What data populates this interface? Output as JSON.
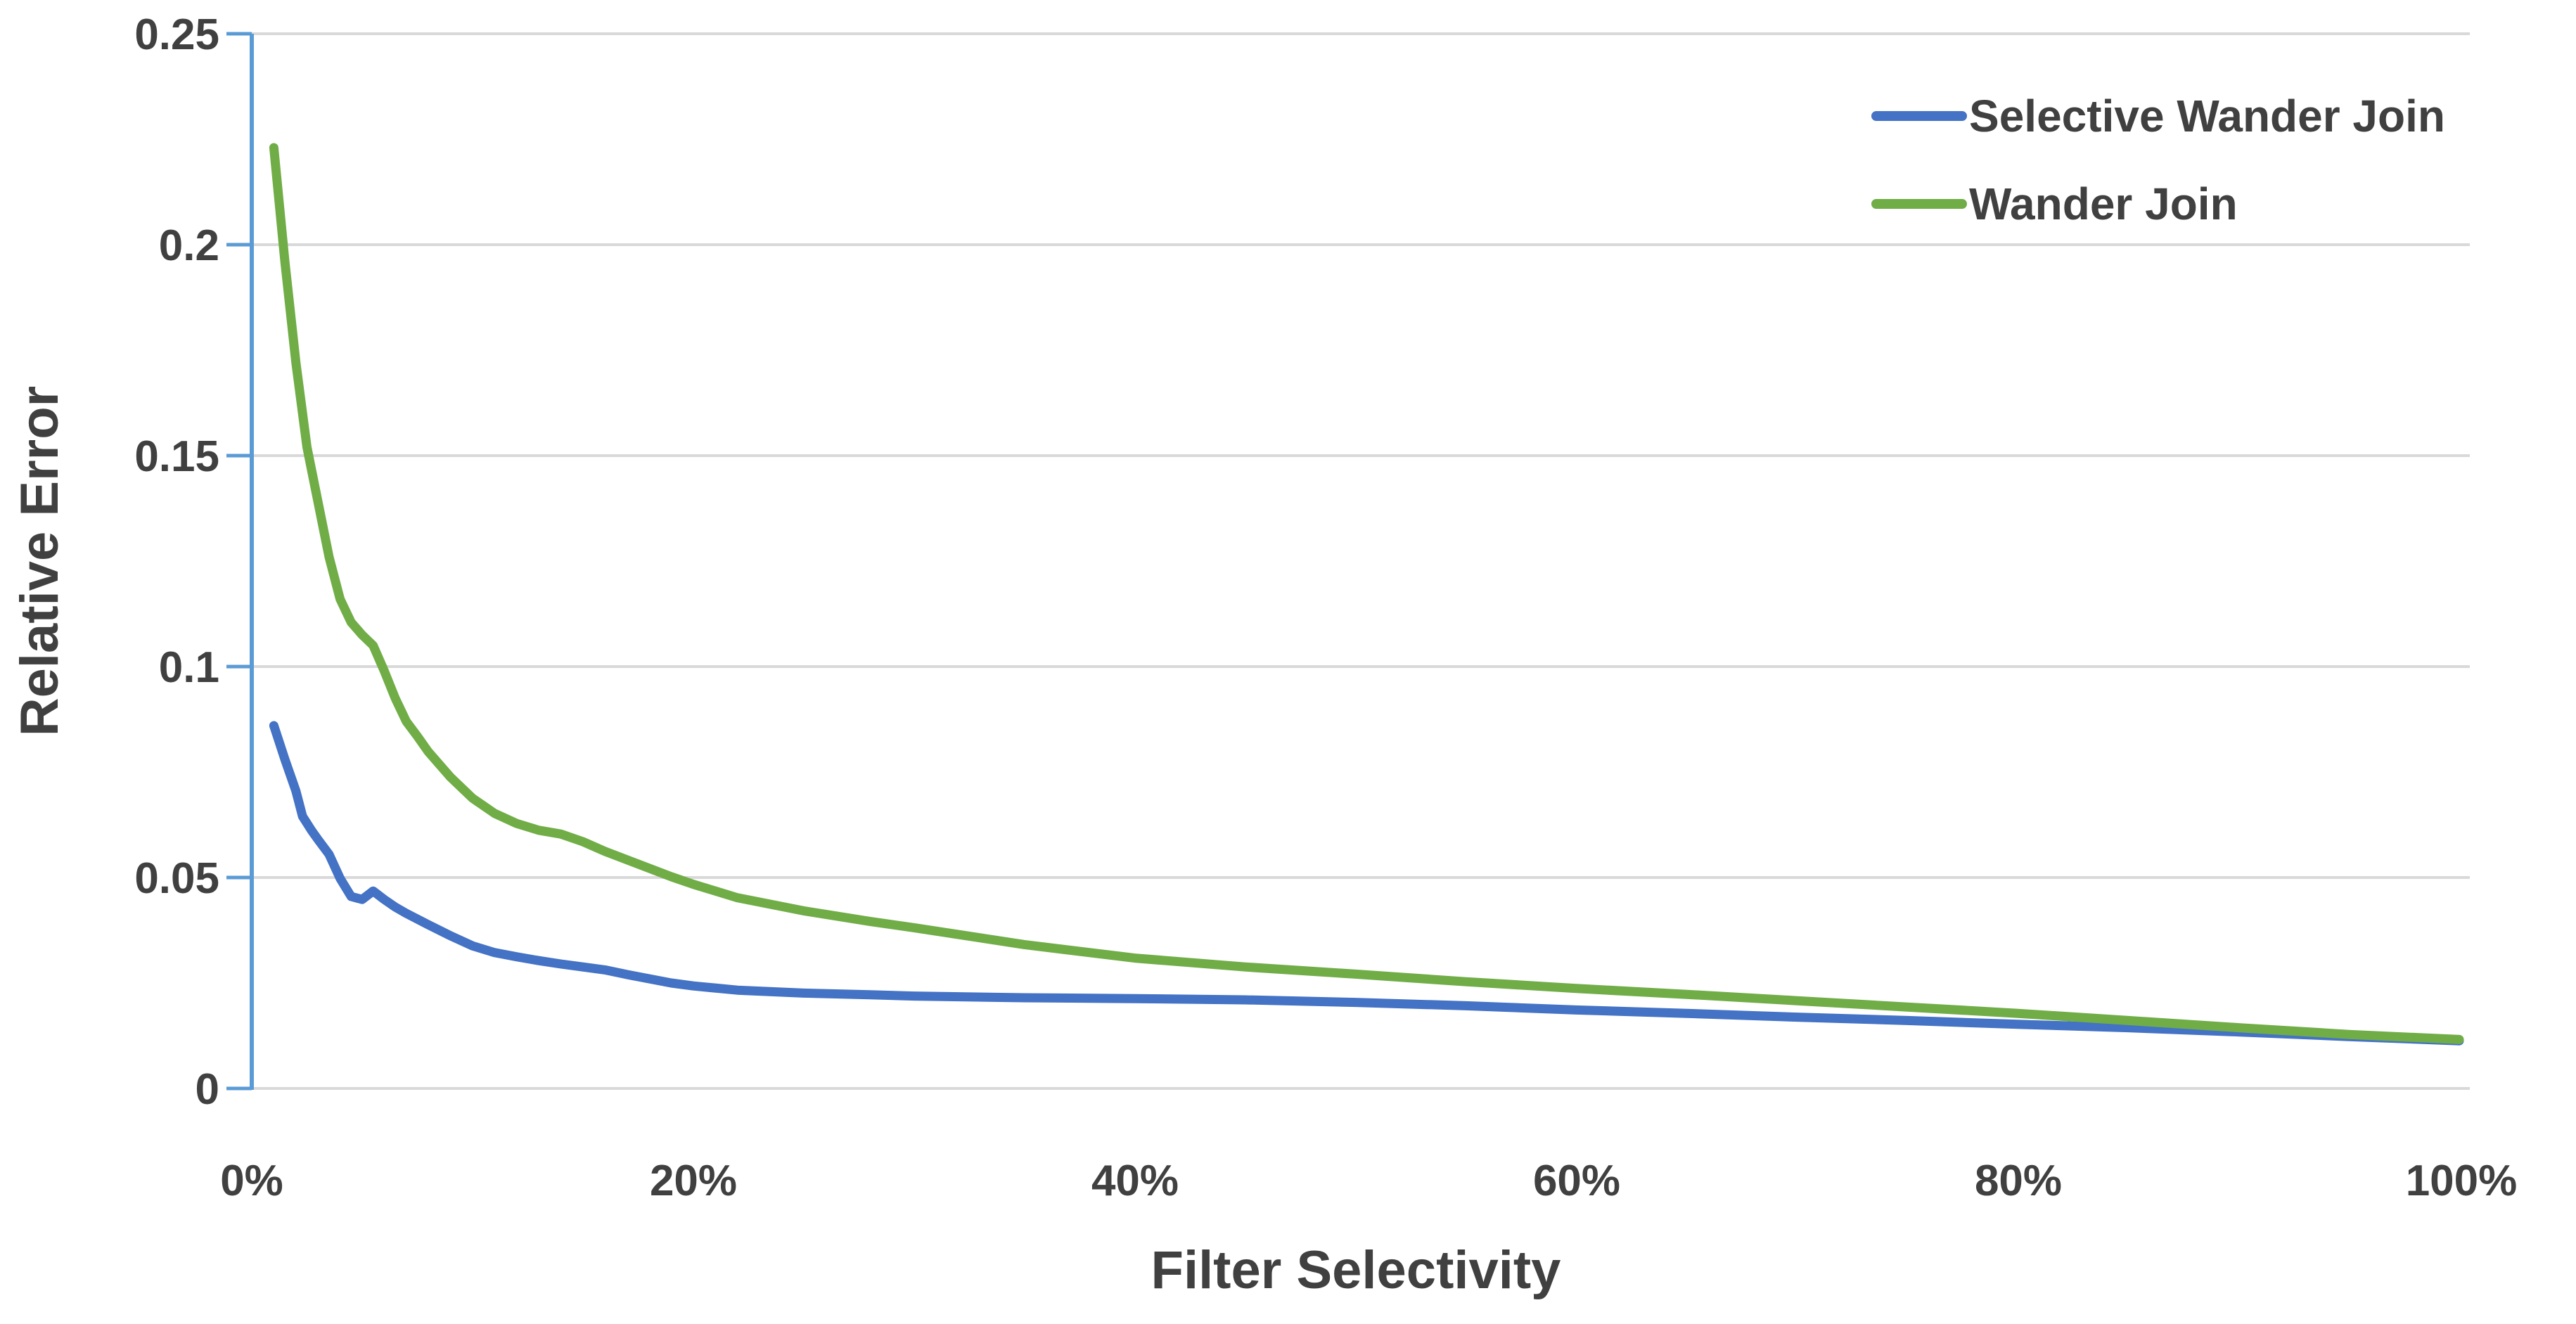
{
  "chart_data": {
    "type": "line",
    "title": "",
    "xlabel": "Filter Selectivity",
    "ylabel": "Relative Error",
    "xlim": [
      0,
      100
    ],
    "ylim": [
      0,
      0.25
    ],
    "x_unit": "percent",
    "grid": "horizontal",
    "legend_position": "top-right",
    "x_tick_values": [
      0,
      20,
      40,
      60,
      80,
      100
    ],
    "x_tick_labels": [
      "0%",
      "20%",
      "40%",
      "60%",
      "80%",
      "100%"
    ],
    "y_tick_values": [
      0,
      0.05,
      0.1,
      0.15,
      0.2,
      0.25
    ],
    "y_tick_labels": [
      "0",
      "0.05",
      "0.1",
      "0.15",
      "0.2",
      "0.25"
    ],
    "colors": {
      "axis_line": "#5B9BD5",
      "gridline": "#D9D9D9",
      "text": "#404040",
      "background": "#FFFFFF",
      "series_blue": "#4472C4",
      "series_green": "#70AD47"
    },
    "series": [
      {
        "name": "Selective Wander Join",
        "color": "#4472C4",
        "points": [
          [
            1,
            0.086
          ],
          [
            1.5,
            0.078
          ],
          [
            2,
            0.0705
          ],
          [
            2.3,
            0.0645
          ],
          [
            2.7,
            0.0612
          ],
          [
            3,
            0.059
          ],
          [
            3.5,
            0.0555
          ],
          [
            4,
            0.0498
          ],
          [
            4.5,
            0.0455
          ],
          [
            5,
            0.0448
          ],
          [
            5.5,
            0.0468
          ],
          [
            6,
            0.0448
          ],
          [
            6.5,
            0.043
          ],
          [
            7,
            0.0415
          ],
          [
            8,
            0.0388
          ],
          [
            9,
            0.0362
          ],
          [
            10,
            0.0338
          ],
          [
            11,
            0.0322
          ],
          [
            12,
            0.0312
          ],
          [
            13,
            0.0303
          ],
          [
            14,
            0.0295
          ],
          [
            15,
            0.0288
          ],
          [
            16,
            0.0281
          ],
          [
            17,
            0.027
          ],
          [
            18,
            0.026
          ],
          [
            19,
            0.025
          ],
          [
            20,
            0.0243
          ],
          [
            22,
            0.0233
          ],
          [
            25,
            0.0226
          ],
          [
            28,
            0.0222
          ],
          [
            30,
            0.0219
          ],
          [
            35,
            0.0215
          ],
          [
            40,
            0.0213
          ],
          [
            45,
            0.021
          ],
          [
            50,
            0.0204
          ],
          [
            55,
            0.0196
          ],
          [
            60,
            0.0186
          ],
          [
            65,
            0.0178
          ],
          [
            70,
            0.0169
          ],
          [
            75,
            0.0161
          ],
          [
            80,
            0.0152
          ],
          [
            85,
            0.0144
          ],
          [
            90,
            0.0134
          ],
          [
            95,
            0.0123
          ],
          [
            100,
            0.0113
          ]
        ]
      },
      {
        "name": "Wander Join",
        "color": "#70AD47",
        "points": [
          [
            1,
            0.223
          ],
          [
            1.5,
            0.196
          ],
          [
            2,
            0.172
          ],
          [
            2.5,
            0.152
          ],
          [
            3,
            0.139
          ],
          [
            3.5,
            0.126
          ],
          [
            4,
            0.116
          ],
          [
            4.5,
            0.1105
          ],
          [
            5,
            0.1075
          ],
          [
            5.5,
            0.105
          ],
          [
            6,
            0.099
          ],
          [
            6.5,
            0.0925
          ],
          [
            7,
            0.087
          ],
          [
            7.5,
            0.0835
          ],
          [
            8,
            0.0798
          ],
          [
            9,
            0.0738
          ],
          [
            10,
            0.0688
          ],
          [
            11,
            0.0652
          ],
          [
            12,
            0.0628
          ],
          [
            13,
            0.0612
          ],
          [
            14,
            0.0603
          ],
          [
            15,
            0.0585
          ],
          [
            16,
            0.0562
          ],
          [
            17,
            0.0542
          ],
          [
            18,
            0.0522
          ],
          [
            19,
            0.0502
          ],
          [
            20,
            0.0484
          ],
          [
            22,
            0.0452
          ],
          [
            25,
            0.0421
          ],
          [
            28,
            0.0396
          ],
          [
            30,
            0.0381
          ],
          [
            35,
            0.0341
          ],
          [
            40,
            0.0309
          ],
          [
            45,
            0.0288
          ],
          [
            50,
            0.0271
          ],
          [
            55,
            0.0253
          ],
          [
            60,
            0.0237
          ],
          [
            65,
            0.0223
          ],
          [
            70,
            0.0208
          ],
          [
            75,
            0.0193
          ],
          [
            80,
            0.0178
          ],
          [
            85,
            0.0161
          ],
          [
            90,
            0.0144
          ],
          [
            95,
            0.0128
          ],
          [
            100,
            0.0116
          ]
        ]
      }
    ]
  }
}
